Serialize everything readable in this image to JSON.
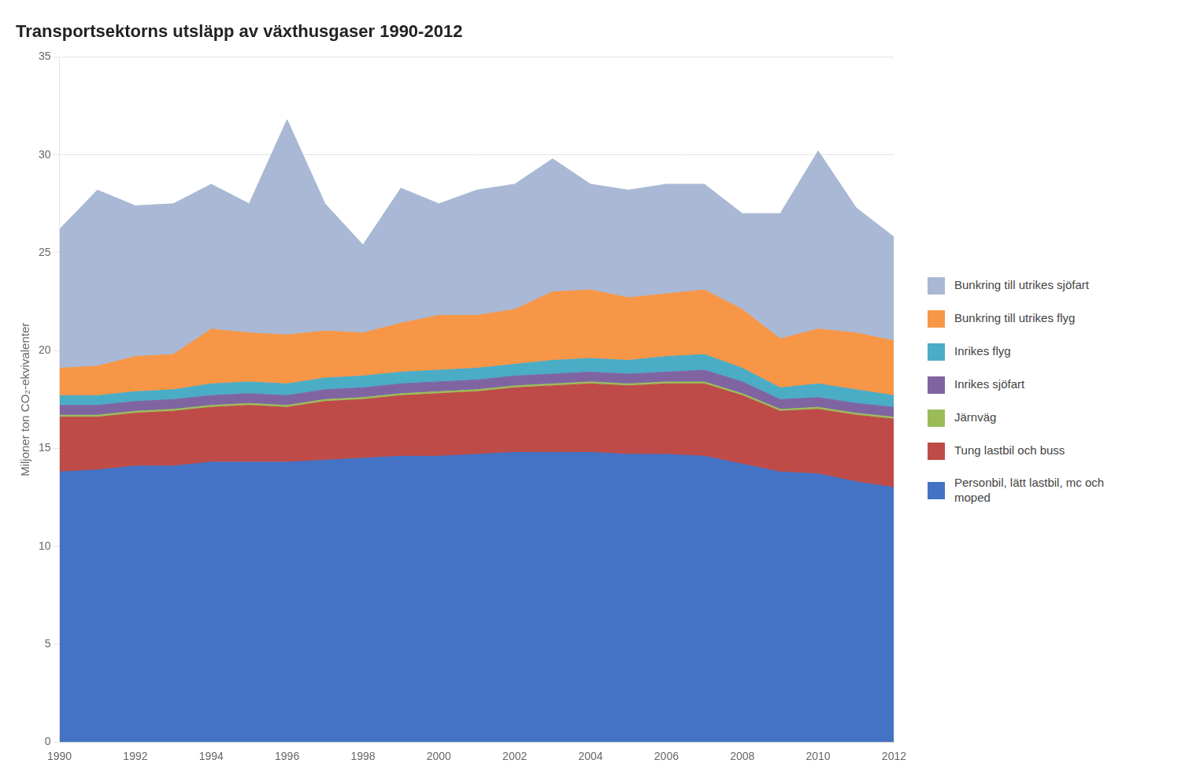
{
  "chart_data": {
    "type": "area",
    "title": "Transportsektorns utsläpp av växthusgaser 1990-2012",
    "ylabel": "Miljoner ton CO₂-ekvivalenter",
    "x": [
      1990,
      1991,
      1992,
      1993,
      1994,
      1995,
      1996,
      1997,
      1998,
      1999,
      2000,
      2001,
      2002,
      2003,
      2004,
      2005,
      2006,
      2007,
      2008,
      2009,
      2010,
      2011,
      2012
    ],
    "series": [
      {
        "name": "Personbil, lätt lastbil, mc och\nmoped",
        "color": "#4472C4",
        "values": [
          13.8,
          13.9,
          14.1,
          14.1,
          14.3,
          14.3,
          14.3,
          14.4,
          14.5,
          14.6,
          14.6,
          14.7,
          14.8,
          14.8,
          14.8,
          14.7,
          14.7,
          14.6,
          14.2,
          13.8,
          13.7,
          13.3,
          13.0
        ]
      },
      {
        "name": "Tung lastbil och buss",
        "color": "#BE4B48",
        "values": [
          2.8,
          2.7,
          2.7,
          2.8,
          2.8,
          2.9,
          2.8,
          3.0,
          3.0,
          3.1,
          3.2,
          3.2,
          3.3,
          3.4,
          3.5,
          3.5,
          3.6,
          3.7,
          3.5,
          3.1,
          3.3,
          3.4,
          3.5
        ]
      },
      {
        "name": "Järnväg",
        "color": "#9BBB59",
        "values": [
          0.1,
          0.1,
          0.1,
          0.1,
          0.1,
          0.1,
          0.1,
          0.1,
          0.1,
          0.1,
          0.1,
          0.1,
          0.1,
          0.1,
          0.1,
          0.1,
          0.1,
          0.1,
          0.1,
          0.1,
          0.1,
          0.1,
          0.1
        ]
      },
      {
        "name": "Inrikes sjöfart",
        "color": "#8064A2",
        "values": [
          0.5,
          0.5,
          0.5,
          0.5,
          0.5,
          0.5,
          0.5,
          0.5,
          0.5,
          0.5,
          0.5,
          0.5,
          0.5,
          0.5,
          0.5,
          0.5,
          0.5,
          0.6,
          0.6,
          0.5,
          0.5,
          0.5,
          0.5
        ]
      },
      {
        "name": "Inrikes flyg",
        "color": "#4BACC6",
        "values": [
          0.5,
          0.5,
          0.5,
          0.5,
          0.6,
          0.6,
          0.6,
          0.6,
          0.6,
          0.6,
          0.6,
          0.6,
          0.6,
          0.7,
          0.7,
          0.7,
          0.8,
          0.8,
          0.7,
          0.6,
          0.7,
          0.7,
          0.6
        ]
      },
      {
        "name": "Bunkring till utrikes flyg",
        "color": "#F79646",
        "values": [
          1.4,
          1.5,
          1.8,
          1.8,
          2.8,
          2.5,
          2.5,
          2.4,
          2.2,
          2.5,
          2.8,
          2.7,
          2.8,
          3.5,
          3.5,
          3.2,
          3.2,
          3.3,
          3.0,
          2.5,
          2.8,
          2.9,
          2.8
        ]
      },
      {
        "name": "Bunkring till utrikes sjöfart",
        "color": "#A9B8D4",
        "values": [
          7.1,
          9.0,
          7.7,
          7.7,
          7.4,
          6.6,
          11.0,
          6.5,
          4.5,
          6.9,
          5.7,
          6.4,
          6.4,
          6.8,
          5.4,
          5.5,
          5.6,
          5.4,
          4.9,
          6.4,
          9.1,
          6.4,
          5.3
        ]
      }
    ],
    "xlim": [
      1990,
      2012
    ],
    "xticks": [
      1990,
      1992,
      1994,
      1996,
      1998,
      2000,
      2002,
      2004,
      2006,
      2008,
      2010,
      2012
    ],
    "ylim": [
      0,
      35
    ],
    "yticks": [
      0,
      5,
      10,
      15,
      20,
      25,
      30,
      35
    ],
    "stacked": true,
    "grid": "y",
    "legend": "right"
  }
}
